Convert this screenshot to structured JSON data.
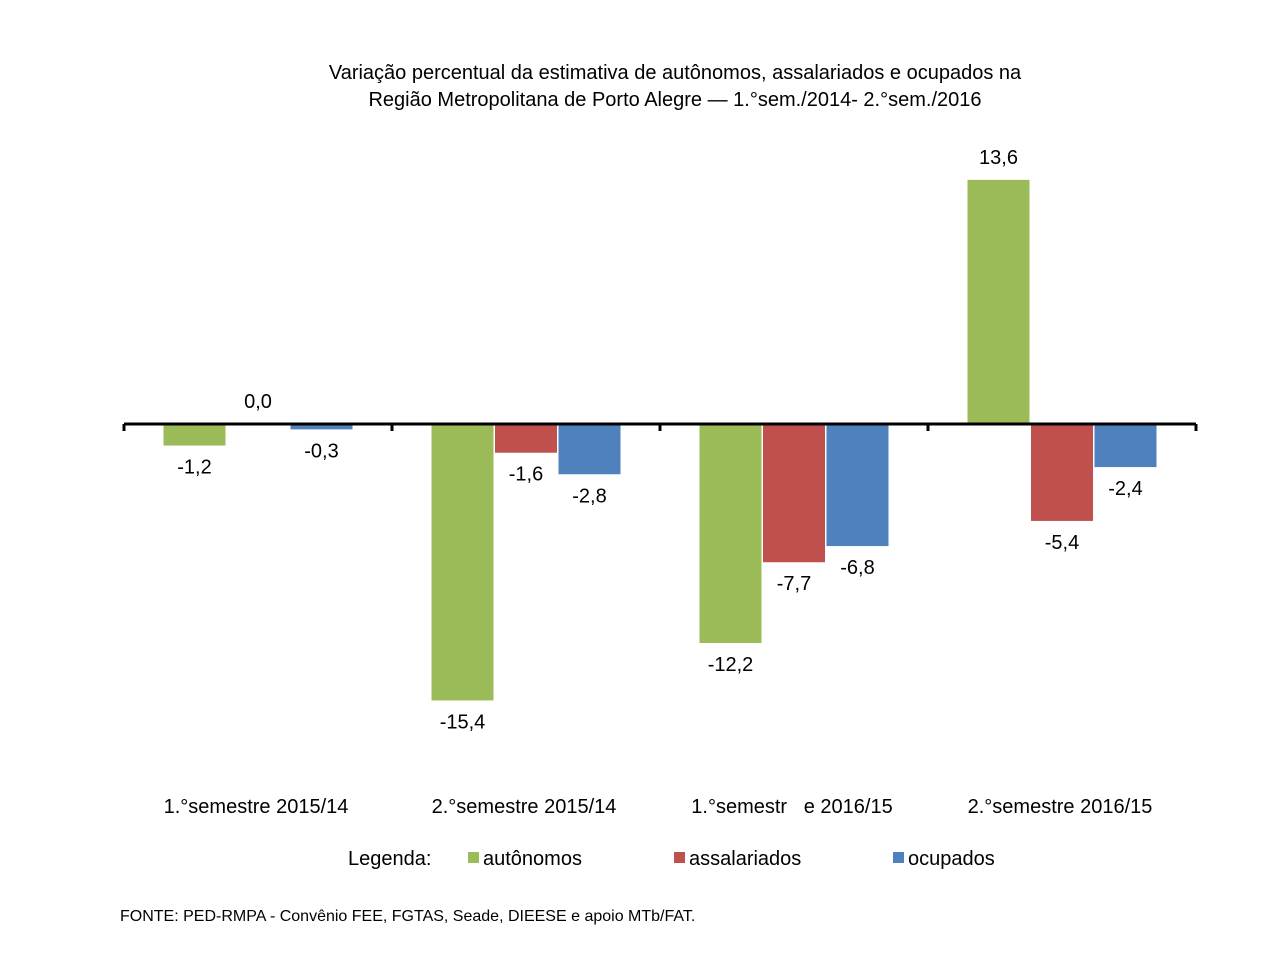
{
  "chart_data": {
    "type": "bar",
    "title_lines": [
      "Variação percentual da estimativa de autônomos, assalariados e ocupados na",
      "Região Metropolitana de Porto Alegre — 1.°sem./2014- 2.°sem./2016"
    ],
    "categories": [
      "1.°semestre 2015/14",
      "2.°semestre 2015/14",
      "1.°semestr   e 2016/15",
      "2.°semestre 2016/15"
    ],
    "series": [
      {
        "name": "autônomos",
        "color": "#9bbb59",
        "values": [
          -1.2,
          -15.4,
          -12.2,
          13.6
        ],
        "labels": [
          "-1,2",
          "-15,4",
          "-12,2",
          "13,6"
        ]
      },
      {
        "name": "assalariados",
        "color": "#c0504d",
        "values": [
          0.0,
          -1.6,
          -7.7,
          -5.4
        ],
        "labels": [
          "0,0",
          "-1,6",
          "-7,7",
          "-5,4"
        ]
      },
      {
        "name": "ocupados",
        "color": "#4f81bd",
        "values": [
          -0.3,
          -2.8,
          -6.8,
          -2.4
        ],
        "labels": [
          "-0,3",
          "-2,8",
          "-6,8",
          "-2,4"
        ]
      }
    ],
    "legend_title": "Legenda:",
    "legend_position": "bottom",
    "grid": false,
    "source": "FONTE: PED-RMPA - Convênio FEE, FGTAS, Seade, DIEESE e apoio MTb/FAT."
  }
}
